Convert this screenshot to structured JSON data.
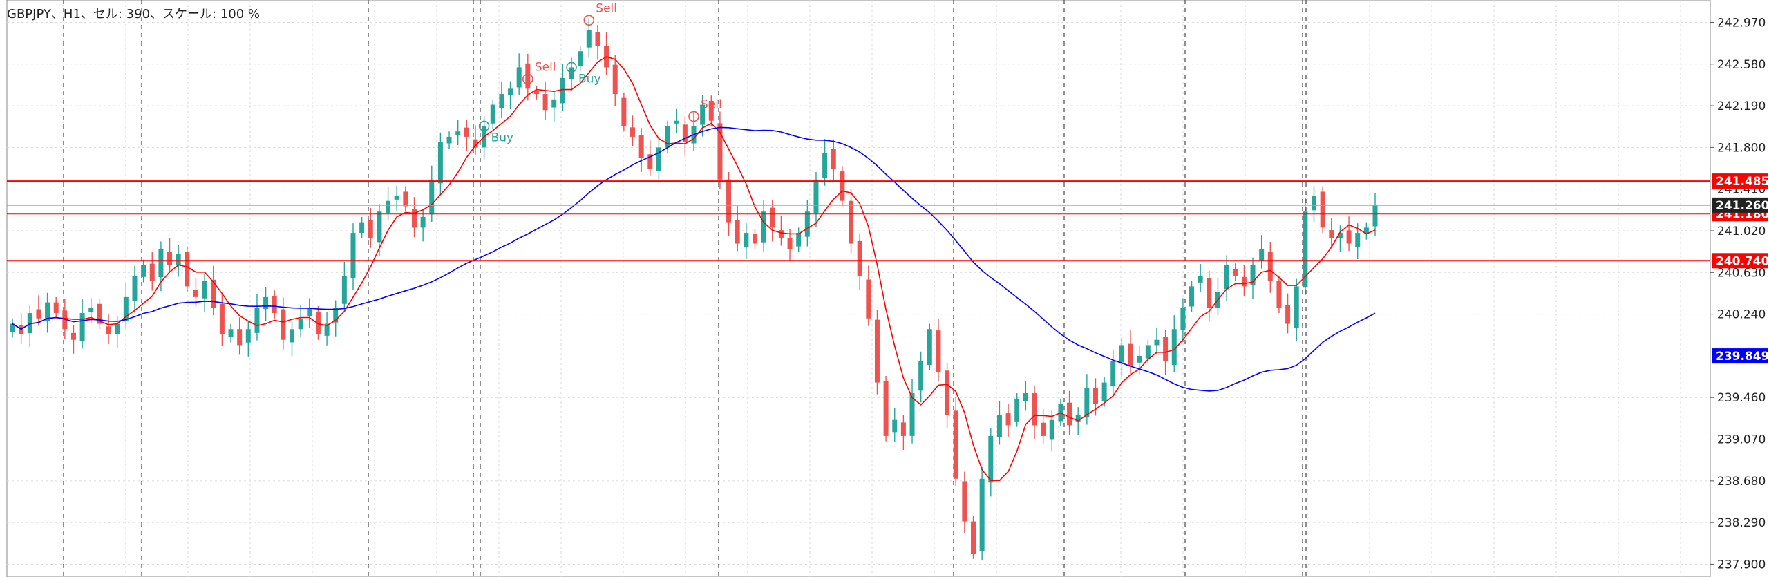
{
  "header": {
    "title": "GBPJPY、H1、セル: 390、スケール: 100 %"
  },
  "price_axis": {
    "labels": [
      "242.970",
      "242.580",
      "242.190",
      "241.800",
      "241.410",
      "241.020",
      "240.630",
      "240.240",
      "239.460",
      "239.070",
      "238.680",
      "238.290",
      "237.900"
    ]
  },
  "horizontal_lines": [
    {
      "price": 241.485,
      "label": "241.485",
      "color": "#ff0000"
    },
    {
      "price": 241.18,
      "label": "241.180",
      "color": "#ff0000"
    },
    {
      "price": 240.74,
      "label": "240.740",
      "color": "#ff0000"
    }
  ],
  "current_price": {
    "value": 241.26,
    "label": "241.260",
    "line_color": "#7ea7ff",
    "tag_color": "#222222"
  },
  "ma_tag": {
    "value": 239.849,
    "label": "239.849",
    "color": "#0000ff"
  },
  "signals": [
    {
      "text": "Buy"
    },
    {
      "text": "Sell"
    },
    {
      "text": "Buy"
    },
    {
      "text": "Sell"
    },
    {
      "text": "Sell"
    }
  ],
  "colors": {
    "bull": "#26a69a",
    "bear": "#ef5350",
    "ma_fast": "#ff0000",
    "ma_slow": "#0000ff",
    "grid": "#d9d9d9",
    "period_sep": "#555555",
    "buy": "#26a69a",
    "sell": "#ef5350"
  },
  "chart_data": {
    "type": "candlestick",
    "symbol": "GBPJPY",
    "timeframe": "H1",
    "ylim": [
      237.78,
      243.18
    ],
    "close_series": [
      240.15,
      240.05,
      240.25,
      240.2,
      240.35,
      240.25,
      240.1,
      240.0,
      240.25,
      240.3,
      240.15,
      240.05,
      240.15,
      240.4,
      240.6,
      240.7,
      240.55,
      240.85,
      240.7,
      240.8,
      240.5,
      240.4,
      240.55,
      240.3,
      240.05,
      240.1,
      239.95,
      240.1,
      240.3,
      240.4,
      240.25,
      240.0,
      240.1,
      240.2,
      240.3,
      240.05,
      240.15,
      240.3,
      240.6,
      241.0,
      241.1,
      240.95,
      241.2,
      241.3,
      241.35,
      241.25,
      241.05,
      241.15,
      241.5,
      241.85,
      241.9,
      241.95,
      241.9,
      241.8,
      242.0,
      242.2,
      242.3,
      242.35,
      242.55,
      242.35,
      242.3,
      242.15,
      242.25,
      242.45,
      242.55,
      242.7,
      242.9,
      242.75,
      242.55,
      242.3,
      242.0,
      241.9,
      241.7,
      241.6,
      241.8,
      242.0,
      242.05,
      241.85,
      242.0,
      242.2,
      242.05,
      241.5,
      241.1,
      240.9,
      241.0,
      240.9,
      241.2,
      241.05,
      240.95,
      240.85,
      241.0,
      241.2,
      241.5,
      241.75,
      241.6,
      241.3,
      240.9,
      240.6,
      240.2,
      239.6,
      239.1,
      239.25,
      239.1,
      239.5,
      239.8,
      240.1,
      239.7,
      239.3,
      238.7,
      238.3,
      238.0,
      238.7,
      239.1,
      239.3,
      239.2,
      239.45,
      239.5,
      239.2,
      239.1,
      239.25,
      239.4,
      239.2,
      239.3,
      239.55,
      239.4,
      239.6,
      239.8,
      239.95,
      239.75,
      239.85,
      239.95,
      240.0,
      239.8,
      240.1,
      240.3,
      240.5,
      240.6,
      240.3,
      240.45,
      240.7,
      240.6,
      240.5,
      240.7,
      240.85,
      240.55,
      240.3,
      240.15,
      240.5,
      241.2,
      241.35,
      241.05,
      240.95,
      241.0,
      240.9,
      241.0,
      241.05,
      241.26
    ],
    "horizontal_levels": [
      241.485,
      241.18,
      240.74
    ],
    "current_price": 241.26,
    "slow_ma_last": 239.849
  }
}
